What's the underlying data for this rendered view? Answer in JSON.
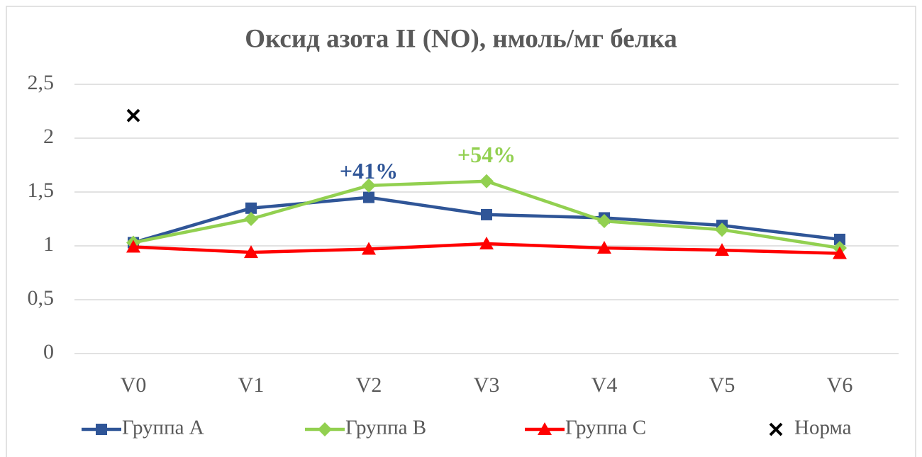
{
  "chart_data": {
    "type": "line",
    "title": "Оксид азота II (NO), нмоль/мг белка",
    "categories": [
      "V0",
      "V1",
      "V2",
      "V3",
      "V4",
      "V5",
      "V6"
    ],
    "series": [
      {
        "name": "Группа A",
        "color": "#2f5597",
        "marker": "square",
        "label": "+41%",
        "values": [
          1.03,
          1.35,
          1.45,
          1.29,
          1.26,
          1.19,
          1.06
        ]
      },
      {
        "name": "Группа B",
        "color": "#92d050",
        "marker": "diamond",
        "label": "+54%",
        "values": [
          1.03,
          1.25,
          1.56,
          1.6,
          1.23,
          1.15,
          0.98
        ]
      },
      {
        "name": "Группа C",
        "color": "#ff0000",
        "marker": "triangle",
        "values": [
          0.99,
          0.94,
          0.97,
          1.02,
          0.98,
          0.96,
          0.93
        ]
      },
      {
        "name": "Норма",
        "color": "#000000",
        "marker": "x",
        "values": [
          2.21,
          null,
          null,
          null,
          null,
          null,
          null
        ]
      }
    ],
    "ylim": [
      0,
      2.5
    ],
    "yticks": [
      0,
      {
        "value": 0.5,
        "label": "0,5"
      },
      1,
      {
        "value": 1.5,
        "label": "1,5"
      },
      2,
      {
        "value": 2.5,
        "label": "2,5"
      }
    ],
    "grid": true,
    "legend": "bottom"
  }
}
